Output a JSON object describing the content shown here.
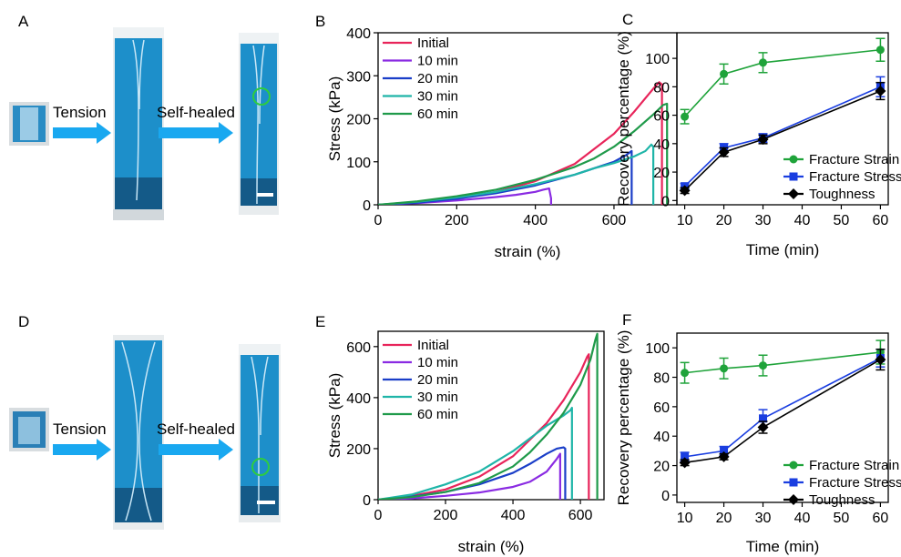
{
  "panel_letters": {
    "A": "A",
    "B": "B",
    "C": "C",
    "D": "D",
    "E": "E",
    "F": "F"
  },
  "process": {
    "tension": "Tension",
    "self_healed": "Self-healed"
  },
  "colors": {
    "initial": "#e8245a",
    "m10": "#8a2be2",
    "m20": "#1a3ec8",
    "m30": "#1fb5a8",
    "m60": "#1f9a4a",
    "strain": "#1fa33a",
    "stress": "#1a3ee0",
    "tough": "#000000",
    "arrow": "#19a8f0",
    "gel_bg": "#1e90c8",
    "circle": "#2ecc40"
  },
  "chart_data": [
    {
      "id": "B",
      "type": "line",
      "xlabel": "strain (%)",
      "ylabel": "Stress (kPa)",
      "xlim": [
        0,
        760
      ],
      "ylim": [
        0,
        400
      ],
      "xticks": [
        0,
        200,
        400,
        600
      ],
      "yticks": [
        0,
        100,
        200,
        300,
        400
      ],
      "legend": [
        "Initial",
        "10 min",
        "20 min",
        "30 min",
        "60 min"
      ],
      "legend_position": "top-left",
      "series": [
        {
          "name": "Initial",
          "color_key": "initial",
          "x": [
            0,
            100,
            200,
            300,
            400,
            500,
            600,
            650,
            700,
            715,
            722,
            722
          ],
          "y": [
            0,
            5,
            15,
            30,
            55,
            95,
            165,
            215,
            270,
            285,
            280,
            0
          ]
        },
        {
          "name": "10 min",
          "color_key": "m10",
          "x": [
            0,
            100,
            200,
            300,
            350,
            400,
            420,
            435,
            440,
            440
          ],
          "y": [
            0,
            4,
            10,
            18,
            23,
            30,
            35,
            38,
            15,
            0
          ]
        },
        {
          "name": "20 min",
          "color_key": "m20",
          "x": [
            0,
            100,
            200,
            300,
            400,
            500,
            550,
            600,
            630,
            645,
            645
          ],
          "y": [
            0,
            5,
            14,
            27,
            45,
            70,
            85,
            100,
            115,
            125,
            0
          ]
        },
        {
          "name": "30 min",
          "color_key": "m30",
          "x": [
            0,
            100,
            200,
            300,
            400,
            500,
            550,
            600,
            650,
            680,
            695,
            700,
            700
          ],
          "y": [
            0,
            7,
            17,
            30,
            48,
            70,
            85,
            97,
            112,
            125,
            140,
            135,
            0
          ]
        },
        {
          "name": "60 min",
          "color_key": "m60",
          "x": [
            0,
            100,
            200,
            300,
            400,
            500,
            550,
            600,
            650,
            700,
            725,
            735,
            735
          ],
          "y": [
            0,
            8,
            20,
            35,
            58,
            88,
            108,
            135,
            170,
            210,
            232,
            235,
            0
          ]
        }
      ]
    },
    {
      "id": "C",
      "type": "line",
      "xlabel": "Time (min)",
      "ylabel": "Recovery percentage (%)",
      "xlim": [
        8,
        62
      ],
      "ylim": [
        -3,
        118
      ],
      "xticks": [
        10,
        20,
        30,
        40,
        50,
        60
      ],
      "yticks": [
        0,
        20,
        40,
        60,
        80,
        100
      ],
      "legend": [
        "Fracture Strain",
        "Fracture Stress",
        "Toughness"
      ],
      "legend_position": "bottom-right",
      "x": [
        10,
        20,
        30,
        60
      ],
      "series": [
        {
          "name": "Fracture Strain",
          "color_key": "strain",
          "marker": "circle",
          "values": [
            59,
            89,
            97,
            106
          ],
          "errors": [
            5,
            7,
            7,
            8
          ]
        },
        {
          "name": "Fracture Stress",
          "color_key": "stress",
          "marker": "square",
          "values": [
            10,
            37,
            44,
            80
          ],
          "errors": [
            2,
            3,
            3,
            7
          ]
        },
        {
          "name": "Toughness",
          "color_key": "tough",
          "marker": "diamond",
          "values": [
            7,
            34,
            43,
            77
          ],
          "errors": [
            2,
            3,
            3,
            6
          ]
        }
      ]
    },
    {
      "id": "E",
      "type": "line",
      "xlabel": "strain (%)",
      "ylabel": "Stress (kPa)",
      "xlim": [
        0,
        670
      ],
      "ylim": [
        0,
        660
      ],
      "xticks": [
        0,
        200,
        400,
        600
      ],
      "yticks": [
        0,
        200,
        400,
        600
      ],
      "legend": [
        "Initial",
        "10 min",
        "20 min",
        "30 min",
        "60 min"
      ],
      "legend_position": "top-left",
      "series": [
        {
          "name": "Initial",
          "color_key": "initial",
          "x": [
            0,
            100,
            200,
            300,
            400,
            500,
            550,
            600,
            620,
            625,
            625
          ],
          "y": [
            0,
            15,
            40,
            90,
            170,
            300,
            390,
            500,
            560,
            570,
            0
          ]
        },
        {
          "name": "10 min",
          "color_key": "m10",
          "x": [
            0,
            100,
            200,
            300,
            400,
            450,
            500,
            530,
            540,
            540
          ],
          "y": [
            0,
            5,
            15,
            28,
            50,
            70,
            110,
            160,
            180,
            0
          ]
        },
        {
          "name": "20 min",
          "color_key": "m20",
          "x": [
            0,
            100,
            200,
            300,
            400,
            450,
            500,
            530,
            550,
            555,
            555
          ],
          "y": [
            0,
            12,
            30,
            60,
            105,
            140,
            180,
            200,
            205,
            200,
            0
          ]
        },
        {
          "name": "30 min",
          "color_key": "m30",
          "x": [
            0,
            100,
            200,
            300,
            400,
            450,
            500,
            550,
            570,
            575,
            575
          ],
          "y": [
            0,
            20,
            60,
            110,
            190,
            240,
            290,
            330,
            350,
            360,
            0
          ]
        },
        {
          "name": "60 min",
          "color_key": "m60",
          "x": [
            0,
            100,
            200,
            300,
            400,
            450,
            500,
            550,
            600,
            630,
            645,
            650,
            650
          ],
          "y": [
            0,
            10,
            30,
            65,
            130,
            185,
            255,
            340,
            450,
            550,
            630,
            650,
            0
          ]
        }
      ]
    },
    {
      "id": "F",
      "type": "line",
      "xlabel": "Time (min)",
      "ylabel": "Recovery percentage (%)",
      "xlim": [
        8,
        62
      ],
      "ylim": [
        -5,
        110
      ],
      "xticks": [
        10,
        20,
        30,
        40,
        50,
        60
      ],
      "yticks": [
        0,
        20,
        40,
        60,
        80,
        100
      ],
      "legend": [
        "Fracture Strain",
        "Fracture Stress",
        "Toughness"
      ],
      "legend_position": "bottom-right",
      "x": [
        10,
        20,
        30,
        60
      ],
      "series": [
        {
          "name": "Fracture Strain",
          "color_key": "strain",
          "marker": "circle",
          "values": [
            83,
            86,
            88,
            97
          ],
          "errors": [
            7,
            7,
            7,
            8
          ]
        },
        {
          "name": "Fracture Stress",
          "color_key": "stress",
          "marker": "square",
          "values": [
            26,
            30,
            52,
            93
          ],
          "errors": [
            3,
            3,
            6,
            6
          ]
        },
        {
          "name": "Toughness",
          "color_key": "tough",
          "marker": "diamond",
          "values": [
            22,
            26,
            46,
            92
          ],
          "errors": [
            2,
            2,
            4,
            7
          ]
        }
      ]
    }
  ]
}
